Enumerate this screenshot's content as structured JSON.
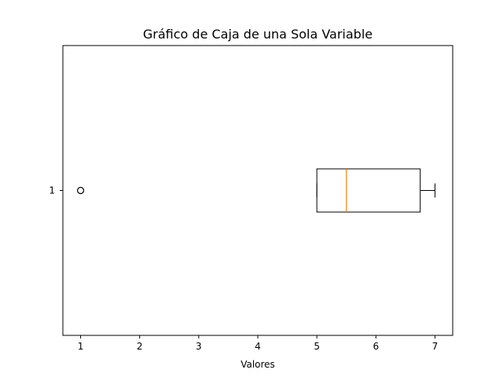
{
  "chart_data": {
    "type": "boxplot",
    "orientation": "horizontal",
    "title": "Gráfico de Caja de una Sola Variable",
    "xlabel": "Valores",
    "ylabel": "",
    "xlim": [
      0.7,
      7.3
    ],
    "xticks": [
      1,
      2,
      3,
      4,
      5,
      6,
      7
    ],
    "category_labels": [
      "1"
    ],
    "boxes": [
      {
        "category": "1",
        "whisker_low": 5,
        "q1": 5,
        "median": 5.5,
        "q3": 6.75,
        "whisker_high": 7,
        "outliers": [
          1
        ]
      }
    ],
    "grid": false,
    "colors": {
      "box": "#000000",
      "median": "#ff7f0e",
      "outlier": "#000000",
      "axes": "#000000"
    }
  }
}
